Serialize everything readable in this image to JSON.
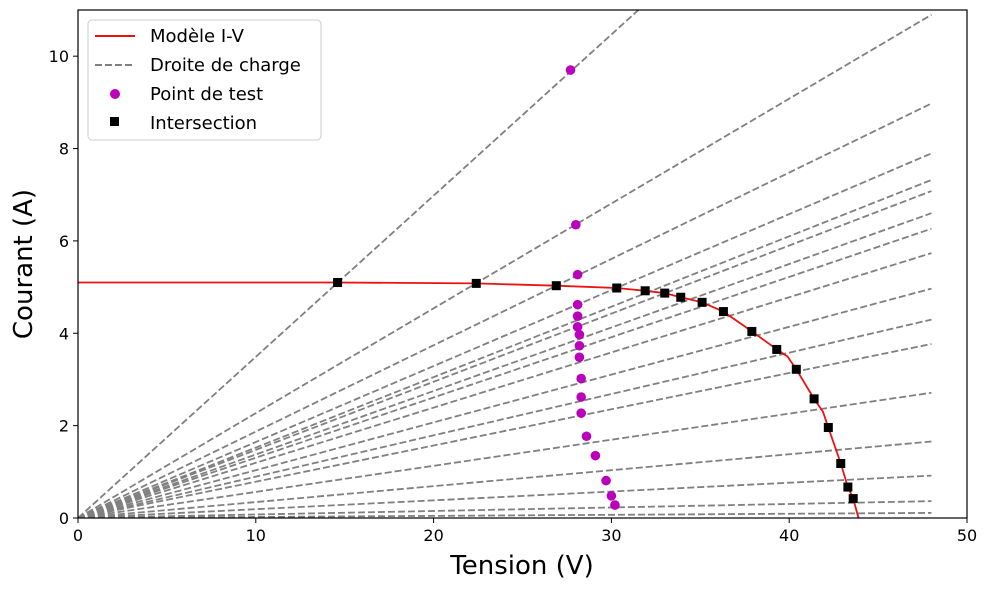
{
  "chart_data": {
    "type": "line",
    "xlabel": "Tension (V)",
    "ylabel": "Courant (A)",
    "xlim": [
      0,
      50
    ],
    "ylim": [
      0,
      11
    ],
    "xticks": [
      0,
      10,
      20,
      30,
      40,
      50
    ],
    "yticks": [
      0,
      2,
      4,
      6,
      8,
      10
    ],
    "grid": false,
    "legend_position": "top-left",
    "legend": {
      "model": "Modèle I-V",
      "load": "Droite de charge",
      "test": "Point de test",
      "intersection": "Intersection"
    },
    "colors": {
      "model": "#ee1111",
      "load": "#808080",
      "test": "#bb00bb",
      "intersection": "#000000"
    },
    "series": [
      {
        "name": "Modèle I-V",
        "style": "solid-line",
        "x": [
          0,
          14.6,
          22.4,
          26.9,
          30.3,
          31.9,
          33.0,
          33.9,
          35.1,
          36.3,
          37.9,
          39.3,
          39.9,
          40.4,
          41.4,
          41.9,
          42.2,
          42.9,
          43.3,
          43.6,
          43.9
        ],
        "y": [
          5.1,
          5.1,
          5.08,
          5.03,
          4.98,
          4.92,
          4.87,
          4.78,
          4.67,
          4.47,
          4.04,
          3.65,
          3.5,
          3.22,
          2.58,
          2.3,
          1.96,
          1.18,
          0.67,
          0.42,
          0.0
        ]
      },
      {
        "name": "Droite de charge",
        "style": "dashed-line",
        "slopes": [
          0.349,
          0.227,
          0.187,
          0.1645,
          0.1525,
          0.1475,
          0.1375,
          0.1305,
          0.1195,
          0.1035,
          0.0895,
          0.0785,
          0.0565,
          0.0345,
          0.0191,
          0.0076,
          0.0023
        ],
        "xmax": 48
      },
      {
        "name": "Point de test",
        "style": "marker-circle",
        "x": [
          27.7,
          28.0,
          28.1,
          28.1,
          28.1,
          28.1,
          28.2,
          28.2,
          28.2,
          28.3,
          28.3,
          28.3,
          28.6,
          29.1,
          29.7,
          30.0,
          30.2
        ],
        "y": [
          9.7,
          6.35,
          5.27,
          4.62,
          4.37,
          4.14,
          3.97,
          3.73,
          3.48,
          3.02,
          2.62,
          2.27,
          1.77,
          1.35,
          0.81,
          0.48,
          0.28
        ]
      },
      {
        "name": "Intersection",
        "style": "marker-square",
        "x": [
          14.6,
          22.4,
          26.9,
          30.3,
          31.9,
          33.0,
          33.9,
          35.1,
          36.3,
          37.9,
          39.3,
          40.4,
          41.4,
          42.2,
          42.9,
          43.3,
          43.6
        ],
        "y": [
          5.1,
          5.08,
          5.03,
          4.98,
          4.92,
          4.87,
          4.78,
          4.67,
          4.47,
          4.04,
          3.65,
          3.22,
          2.58,
          1.96,
          1.18,
          0.67,
          0.42
        ]
      }
    ]
  }
}
